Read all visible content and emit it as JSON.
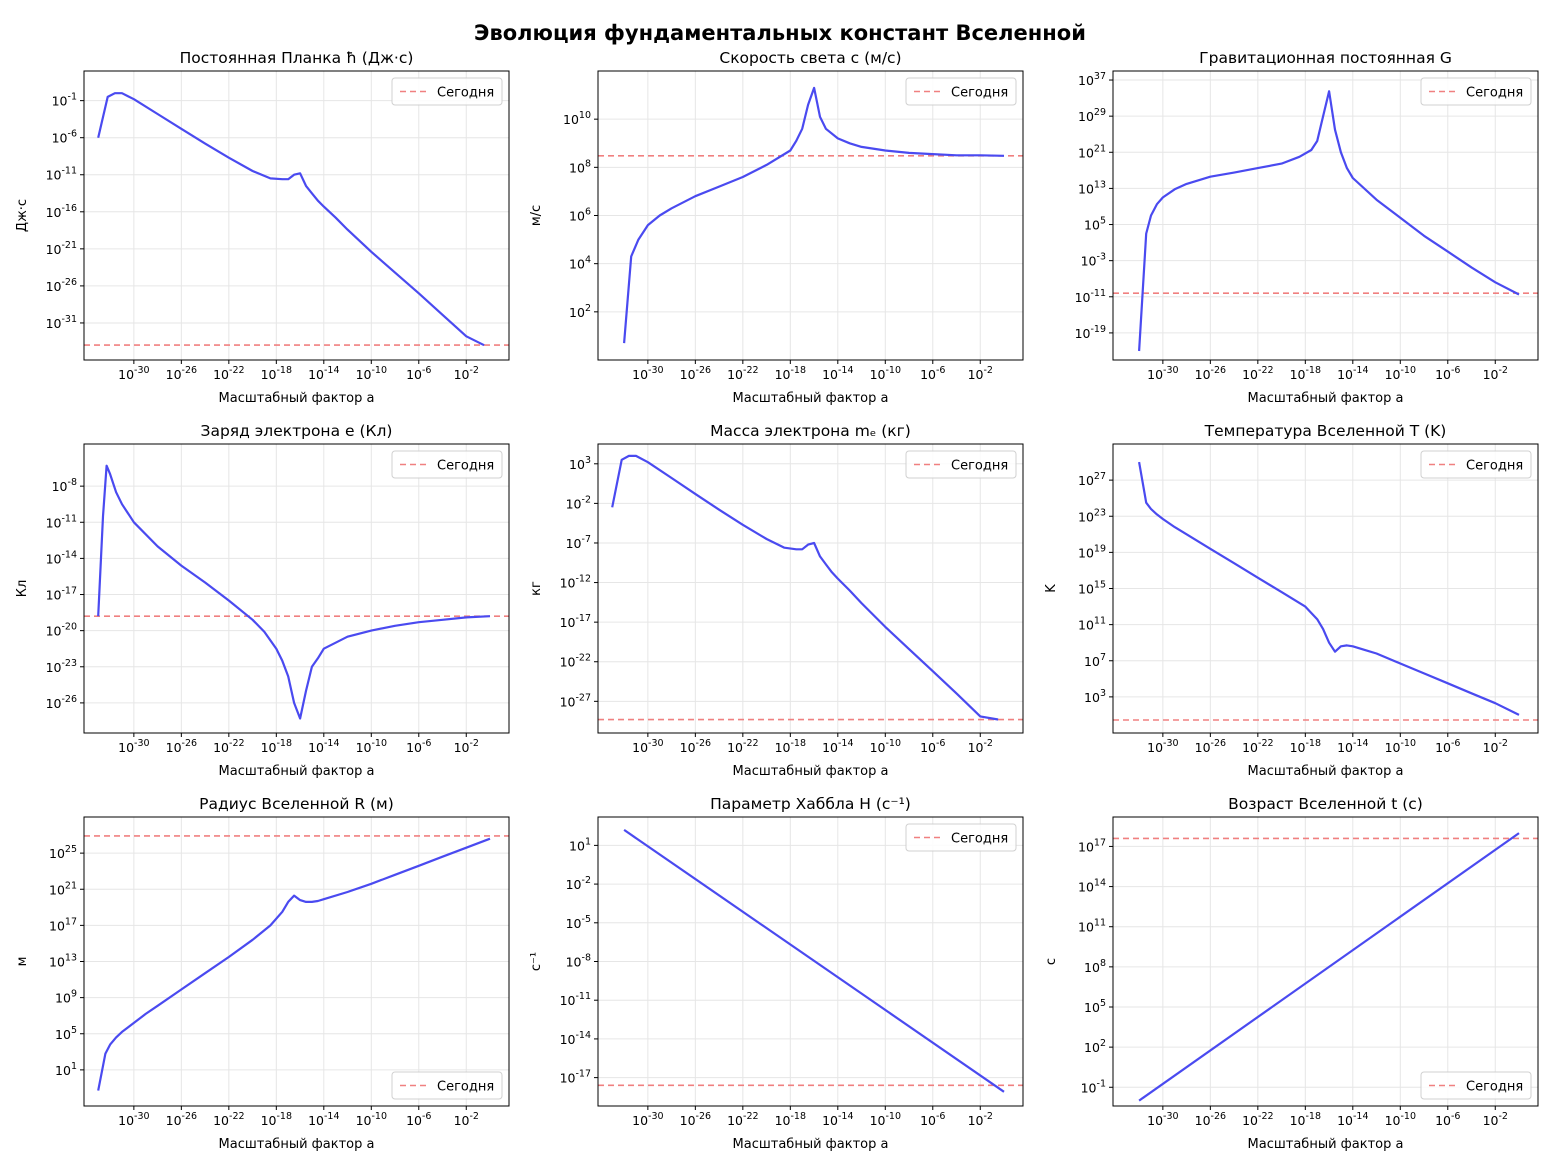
{
  "figure_title": "Эволюция фундаментальных констант Вселенной",
  "colors": {
    "line": "#4a4af0",
    "today": "#f08080",
    "grid": "#e6e6e6",
    "axis": "#000000"
  },
  "xlabel": "Масштабный фактор a",
  "legend_label": "Сегодня",
  "chart_data": [
    {
      "type": "line",
      "title": "Постоянная Планка ħ (Дж·с)",
      "ylabel": "Дж·с",
      "xlim": [
        -34.2,
        1.6
      ],
      "ylim": [
        -36,
        3
      ],
      "xticks": [
        -30,
        -26,
        -22,
        -18,
        -14,
        -10,
        -6,
        -2
      ],
      "yticks": [
        -31,
        -26,
        -21,
        -16,
        -11,
        -6,
        -1
      ],
      "today": -33.98,
      "legend_pos": "upper right",
      "x": [
        -33.0,
        -32.2,
        -31.6,
        -31.0,
        -30.0,
        -28.0,
        -26.0,
        -24.0,
        -22.0,
        -20.0,
        -18.5,
        -17.5,
        -17.0,
        -16.5,
        -16.0,
        -15.5,
        -15.0,
        -14.5,
        -14.0,
        -13.0,
        -12.0,
        -10.0,
        -8.0,
        -6.0,
        -4.0,
        -2.0,
        -0.5
      ],
      "y": [
        -6.0,
        -0.5,
        0.0,
        0.0,
        -0.8,
        -2.8,
        -4.8,
        -6.8,
        -8.7,
        -10.5,
        -11.5,
        -11.6,
        -11.6,
        -11.0,
        -10.8,
        -12.5,
        -13.5,
        -14.5,
        -15.3,
        -16.8,
        -18.4,
        -21.4,
        -24.2,
        -27.0,
        -29.9,
        -32.8,
        -34.0
      ]
    },
    {
      "type": "line",
      "title": "Скорость света c (м/с)",
      "ylabel": "м/с",
      "xlim": [
        -34.2,
        1.6
      ],
      "ylim": [
        0,
        12
      ],
      "xticks": [
        -30,
        -26,
        -22,
        -18,
        -14,
        -10,
        -6,
        -2
      ],
      "yticks": [
        2,
        4,
        6,
        8,
        10
      ],
      "today": 8.48,
      "legend_pos": "upper right",
      "x": [
        -32.0,
        -31.4,
        -30.8,
        -30.0,
        -29.0,
        -28.0,
        -26.0,
        -24.0,
        -22.0,
        -20.0,
        -18.0,
        -17.5,
        -17.0,
        -16.5,
        -16.0,
        -15.5,
        -15.0,
        -14.0,
        -13.0,
        -12.0,
        -10.0,
        -8.0,
        -6.0,
        -4.0,
        -2.0,
        0.0
      ],
      "y": [
        0.7,
        4.3,
        5.0,
        5.6,
        6.0,
        6.3,
        6.8,
        7.2,
        7.6,
        8.1,
        8.7,
        9.1,
        9.6,
        10.6,
        11.3,
        10.1,
        9.6,
        9.2,
        9.0,
        8.85,
        8.7,
        8.6,
        8.55,
        8.5,
        8.5,
        8.48
      ]
    },
    {
      "type": "line",
      "title": "Гравитационная постоянная G",
      "ylabel": "",
      "xlim": [
        -34.2,
        1.6
      ],
      "ylim": [
        -25,
        39
      ],
      "xticks": [
        -30,
        -26,
        -22,
        -18,
        -14,
        -10,
        -6,
        -2
      ],
      "yticks": [
        -19,
        -11,
        -3,
        5,
        13,
        21,
        29,
        37
      ],
      "today": -10.2,
      "legend_pos": "upper right",
      "x": [
        -32.0,
        -31.4,
        -31.0,
        -30.5,
        -30.0,
        -29.0,
        -28.0,
        -26.0,
        -24.0,
        -22.0,
        -20.0,
        -18.5,
        -17.5,
        -17.0,
        -16.5,
        -16.0,
        -15.5,
        -15.0,
        -14.5,
        -14.0,
        -12.0,
        -10.0,
        -8.0,
        -6.0,
        -4.0,
        -2.0,
        0.0
      ],
      "y": [
        -23.0,
        3.0,
        7.0,
        9.5,
        11.0,
        12.8,
        14.0,
        15.6,
        16.5,
        17.5,
        18.5,
        20.0,
        21.5,
        23.5,
        29.0,
        34.5,
        26.0,
        21.0,
        17.5,
        15.3,
        10.5,
        6.5,
        2.5,
        -1.0,
        -4.5,
        -7.8,
        -10.5
      ]
    },
    {
      "type": "line",
      "title": "Заряд электрона e (Кл)",
      "ylabel": "Кл",
      "xlim": [
        -34.2,
        1.6
      ],
      "ylim": [
        -28.5,
        -4.5
      ],
      "xticks": [
        -30,
        -26,
        -22,
        -18,
        -14,
        -10,
        -6,
        -2
      ],
      "yticks": [
        -26,
        -23,
        -20,
        -17,
        -14,
        -11,
        -8
      ],
      "today": -18.8,
      "legend_pos": "upper right",
      "x": [
        -33.0,
        -32.6,
        -32.3,
        -32.0,
        -31.5,
        -31.0,
        -30.0,
        -28.0,
        -26.0,
        -24.0,
        -22.0,
        -20.0,
        -19.0,
        -18.0,
        -17.5,
        -17.0,
        -16.5,
        -16.0,
        -15.5,
        -15.0,
        -14.5,
        -14.0,
        -12.0,
        -10.0,
        -8.0,
        -6.0,
        -4.0,
        -2.0,
        0.0
      ],
      "y": [
        -18.8,
        -10.5,
        -6.3,
        -7.0,
        -8.5,
        -9.5,
        -11.0,
        -13.0,
        -14.6,
        -16.0,
        -17.5,
        -19.1,
        -20.1,
        -21.5,
        -22.5,
        -23.8,
        -26.0,
        -27.3,
        -25.0,
        -23.0,
        -22.3,
        -21.5,
        -20.5,
        -20.0,
        -19.6,
        -19.3,
        -19.1,
        -18.9,
        -18.8
      ]
    },
    {
      "type": "line",
      "title": "Масса электрона mₑ (кг)",
      "ylabel": "кг",
      "xlim": [
        -34.2,
        1.6
      ],
      "ylim": [
        -31,
        5.5
      ],
      "xticks": [
        -30,
        -26,
        -22,
        -18,
        -14,
        -10,
        -6,
        -2
      ],
      "yticks": [
        -27,
        -22,
        -17,
        -12,
        -7,
        -2,
        3
      ],
      "today": -29.3,
      "legend_pos": "upper right",
      "x": [
        -33.0,
        -32.2,
        -31.6,
        -31.0,
        -30.0,
        -28.0,
        -26.0,
        -24.0,
        -22.0,
        -20.0,
        -18.5,
        -17.5,
        -17.0,
        -16.5,
        -16.0,
        -15.5,
        -15.0,
        -14.5,
        -14.0,
        -13.0,
        -12.0,
        -10.0,
        -8.0,
        -6.0,
        -4.0,
        -2.0,
        -0.5
      ],
      "y": [
        -2.5,
        3.5,
        4.0,
        4.0,
        3.2,
        1.2,
        -0.8,
        -2.8,
        -4.7,
        -6.5,
        -7.6,
        -7.8,
        -7.8,
        -7.2,
        -7.0,
        -8.7,
        -9.7,
        -10.7,
        -11.5,
        -13.0,
        -14.6,
        -17.6,
        -20.4,
        -23.2,
        -26.0,
        -28.9,
        -29.3
      ]
    },
    {
      "type": "line",
      "title": "Температура Вселенной T (K)",
      "ylabel": "K",
      "xlim": [
        -34.2,
        1.6
      ],
      "ylim": [
        -1,
        31
      ],
      "xticks": [
        -30,
        -26,
        -22,
        -18,
        -14,
        -10,
        -6,
        -2
      ],
      "yticks": [
        3,
        7,
        11,
        15,
        19,
        23,
        27
      ],
      "today": 0.44,
      "legend_pos": "upper right",
      "x": [
        -32.0,
        -31.4,
        -31.0,
        -30.5,
        -30.0,
        -29.0,
        -28.0,
        -26.0,
        -24.0,
        -22.0,
        -20.0,
        -18.0,
        -17.0,
        -16.5,
        -16.0,
        -15.5,
        -15.0,
        -14.5,
        -14.0,
        -13.0,
        -12.0,
        -10.0,
        -8.0,
        -6.0,
        -4.0,
        -2.0,
        0.0
      ],
      "y": [
        29.0,
        24.5,
        23.8,
        23.2,
        22.7,
        21.8,
        21.0,
        19.4,
        17.8,
        16.2,
        14.6,
        13.0,
        11.6,
        10.5,
        9.0,
        8.0,
        8.6,
        8.7,
        8.6,
        8.2,
        7.8,
        6.7,
        5.6,
        4.5,
        3.4,
        2.3,
        1.0
      ]
    },
    {
      "type": "line",
      "title": "Радиус Вселенной R (м)",
      "ylabel": "м",
      "xlim": [
        -34.2,
        1.6
      ],
      "ylim": [
        -3,
        29
      ],
      "xticks": [
        -30,
        -26,
        -22,
        -18,
        -14,
        -10,
        -6,
        -2
      ],
      "yticks": [
        1,
        5,
        9,
        13,
        17,
        21,
        25
      ],
      "today": 26.9,
      "legend_pos": "lower right",
      "x": [
        -33.0,
        -32.4,
        -32.0,
        -31.5,
        -31.0,
        -30.0,
        -29.0,
        -28.0,
        -26.0,
        -24.0,
        -22.0,
        -20.0,
        -18.5,
        -17.5,
        -17.0,
        -16.5,
        -16.0,
        -15.5,
        -15.0,
        -14.5,
        -14.0,
        -12.0,
        -10.0,
        -8.0,
        -6.0,
        -4.0,
        -2.0,
        0.0
      ],
      "y": [
        -1.3,
        2.8,
        3.8,
        4.6,
        5.2,
        6.2,
        7.2,
        8.1,
        9.9,
        11.7,
        13.5,
        15.4,
        17.0,
        18.5,
        19.6,
        20.3,
        19.8,
        19.6,
        19.6,
        19.7,
        19.9,
        20.7,
        21.6,
        22.6,
        23.6,
        24.6,
        25.6,
        26.6
      ]
    },
    {
      "type": "line",
      "title": "Параметр Хаббла H (с⁻¹)",
      "ylabel": "с⁻¹",
      "xlim": [
        -34.2,
        1.6
      ],
      "ylim": [
        -19.2,
        3.2
      ],
      "xticks": [
        -30,
        -26,
        -22,
        -18,
        -14,
        -10,
        -6,
        -2
      ],
      "yticks": [
        -17,
        -14,
        -11,
        -8,
        -5,
        -2,
        1
      ],
      "today": -17.6,
      "legend_pos": "upper right",
      "x": [
        -32.0,
        0.0
      ],
      "y": [
        2.2,
        -18.1
      ]
    },
    {
      "type": "line",
      "title": "Возраст Вселенной t (с)",
      "ylabel": "с",
      "xlim": [
        -34.2,
        1.6
      ],
      "ylim": [
        -2.4,
        19.2
      ],
      "xticks": [
        -30,
        -26,
        -22,
        -18,
        -14,
        -10,
        -6,
        -2
      ],
      "yticks": [
        -1,
        2,
        5,
        8,
        11,
        14,
        17
      ],
      "today": 17.6,
      "legend_pos": "lower right",
      "x": [
        -32.0,
        0.0
      ],
      "y": [
        -2.0,
        18.0
      ]
    }
  ]
}
